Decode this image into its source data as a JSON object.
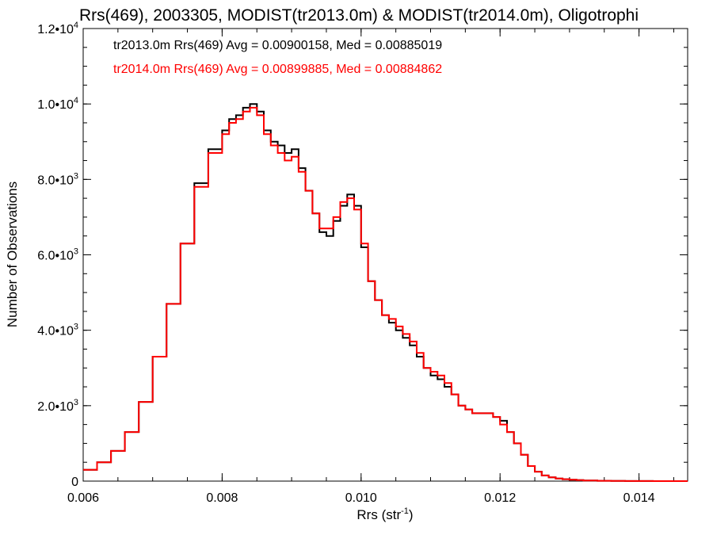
{
  "chart_data": {
    "type": "line",
    "title": "Rrs(469), 2003305, MODIST(tr2013.0m) & MODIST(tr2014.0m), Oligotrophi",
    "xlabel_base": "Rrs (str",
    "xlabel_sup": "-1",
    "xlabel_end": ")",
    "ylabel": "Number of Observations",
    "xlim": [
      0.006,
      0.0147
    ],
    "ylim": [
      0,
      12000
    ],
    "grid": false,
    "legend_placement": "top-left",
    "x_ticks": [
      {
        "value": 0.006,
        "label": "0.006"
      },
      {
        "value": 0.008,
        "label": "0.008"
      },
      {
        "value": 0.01,
        "label": "0.010"
      },
      {
        "value": 0.012,
        "label": "0.012"
      },
      {
        "value": 0.014,
        "label": "0.014"
      }
    ],
    "y_ticks": [
      {
        "value": 0,
        "base": "0",
        "exp": ""
      },
      {
        "value": 2000,
        "base": "2.0•10",
        "exp": "3"
      },
      {
        "value": 4000,
        "base": "4.0•10",
        "exp": "3"
      },
      {
        "value": 6000,
        "base": "6.0•10",
        "exp": "3"
      },
      {
        "value": 8000,
        "base": "8.0•10",
        "exp": "3"
      },
      {
        "value": 10000,
        "base": "1.0•10",
        "exp": "4"
      },
      {
        "value": 12000,
        "base": "1.2•10",
        "exp": "4"
      }
    ],
    "series": [
      {
        "legend": "tr2013.0m Rrs(469) Avg = 0.00900158, Med = 0.00885019",
        "color": "#000000",
        "x": [
          0.006,
          0.0062,
          0.0064,
          0.0066,
          0.0068,
          0.007,
          0.0072,
          0.0074,
          0.0076,
          0.0078,
          0.008,
          0.0081,
          0.0082,
          0.0083,
          0.0084,
          0.0085,
          0.0086,
          0.0087,
          0.0088,
          0.0089,
          0.009,
          0.0091,
          0.0092,
          0.0093,
          0.0094,
          0.0095,
          0.0096,
          0.0097,
          0.0098,
          0.0099,
          0.01,
          0.0101,
          0.0102,
          0.0103,
          0.0104,
          0.0105,
          0.0106,
          0.0107,
          0.0108,
          0.0109,
          0.011,
          0.0111,
          0.0112,
          0.0113,
          0.0114,
          0.0115,
          0.0116,
          0.0117,
          0.0118,
          0.0119,
          0.012,
          0.0121,
          0.0122,
          0.0123,
          0.0124,
          0.0125,
          0.0126,
          0.0127,
          0.0128,
          0.0129,
          0.013,
          0.0131,
          0.0132,
          0.0134,
          0.0136,
          0.0138,
          0.014,
          0.0142,
          0.0144,
          0.0146,
          0.0147
        ],
        "y": [
          300,
          500,
          800,
          1300,
          2100,
          3300,
          4700,
          6300,
          7900,
          8800,
          9300,
          9600,
          9700,
          9900,
          10000,
          9800,
          9300,
          9000,
          8900,
          8700,
          8800,
          8300,
          7700,
          7100,
          6600,
          6500,
          6900,
          7300,
          7600,
          7300,
          6200,
          5300,
          4800,
          4400,
          4200,
          4000,
          3800,
          3600,
          3300,
          3000,
          2800,
          2700,
          2500,
          2300,
          2000,
          1900,
          1800,
          1800,
          1800,
          1700,
          1600,
          1300,
          1000,
          700,
          400,
          250,
          150,
          100,
          70,
          50,
          35,
          25,
          15,
          8,
          5,
          3,
          2,
          1,
          1,
          0,
          0
        ]
      },
      {
        "legend": "tr2014.0m Rrs(469) Avg = 0.00899885, Med = 0.00884862",
        "color": "#ff0000",
        "x": [
          0.006,
          0.0062,
          0.0064,
          0.0066,
          0.0068,
          0.007,
          0.0072,
          0.0074,
          0.0076,
          0.0078,
          0.008,
          0.0081,
          0.0082,
          0.0083,
          0.0084,
          0.0085,
          0.0086,
          0.0087,
          0.0088,
          0.0089,
          0.009,
          0.0091,
          0.0092,
          0.0093,
          0.0094,
          0.0095,
          0.0096,
          0.0097,
          0.0098,
          0.0099,
          0.01,
          0.0101,
          0.0102,
          0.0103,
          0.0104,
          0.0105,
          0.0106,
          0.0107,
          0.0108,
          0.0109,
          0.011,
          0.0111,
          0.0112,
          0.0113,
          0.0114,
          0.0115,
          0.0116,
          0.0117,
          0.0118,
          0.0119,
          0.012,
          0.0121,
          0.0122,
          0.0123,
          0.0124,
          0.0125,
          0.0126,
          0.0127,
          0.0128,
          0.0129,
          0.013,
          0.0131,
          0.0132,
          0.0134,
          0.0136,
          0.0138,
          0.014,
          0.0142,
          0.0144,
          0.0146,
          0.0147
        ],
        "y": [
          300,
          500,
          800,
          1300,
          2100,
          3300,
          4700,
          6300,
          7800,
          8700,
          9200,
          9500,
          9600,
          9800,
          9900,
          9700,
          9200,
          8900,
          8700,
          8500,
          8600,
          8200,
          7700,
          7100,
          6700,
          6700,
          7000,
          7400,
          7500,
          7200,
          6300,
          5300,
          4800,
          4400,
          4300,
          4100,
          3900,
          3700,
          3400,
          3000,
          2900,
          2800,
          2600,
          2300,
          2000,
          1900,
          1800,
          1800,
          1800,
          1700,
          1500,
          1300,
          1000,
          700,
          400,
          250,
          150,
          100,
          70,
          50,
          35,
          25,
          15,
          8,
          5,
          3,
          2,
          1,
          1,
          0,
          0
        ]
      }
    ]
  }
}
